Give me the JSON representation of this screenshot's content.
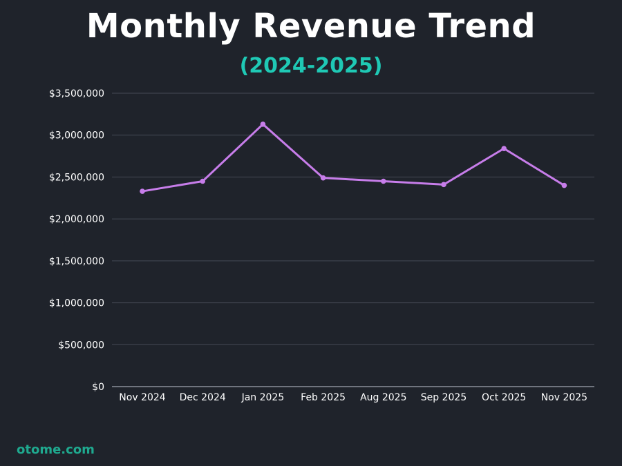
{
  "chart_data": {
    "type": "line",
    "title": "Monthly Revenue Trend",
    "subtitle": "(2024-2025)",
    "categories": [
      "Nov 2024",
      "Dec 2024",
      "Jan 2025",
      "Feb 2025",
      "Aug 2025",
      "Sep 2025",
      "Oct 2025",
      "Nov 2025"
    ],
    "series": [
      {
        "name": "Revenue",
        "values": [
          2330000,
          2450000,
          3130000,
          2490000,
          2450000,
          2410000,
          2840000,
          2400000
        ]
      }
    ],
    "yticks": [
      0,
      500000,
      1000000,
      1500000,
      2000000,
      2500000,
      3000000,
      3500000
    ],
    "ytick_labels": [
      "$0",
      "$500,000",
      "$1,000,000",
      "$1,500,000",
      "$2,000,000",
      "$2,500,000",
      "$3,000,000",
      "$3,500,000"
    ],
    "ylim": [
      0,
      3500000
    ],
    "xlabel": "",
    "ylabel": "",
    "grid": true,
    "line_color": "#c77dea"
  },
  "footer": {
    "brand": "otome.com"
  }
}
